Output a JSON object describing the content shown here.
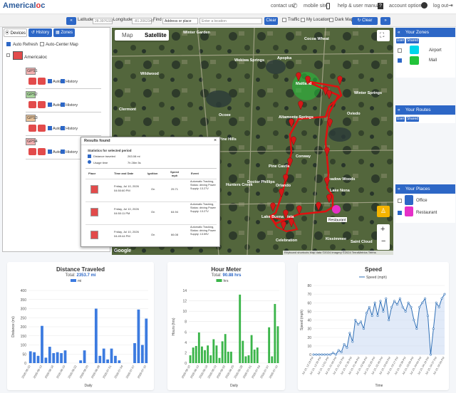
{
  "header": {
    "logo_text": "Americal",
    "logo_o": "o",
    "logo_tail": "c",
    "contact": "contact us",
    "mobile": "mobile site",
    "help": "help & user manuals",
    "account": "account options",
    "logout": "log out"
  },
  "toolbar": {
    "lat_label": "Latitude:",
    "lat_value": "28.3976337",
    "lng_label": "Longitude:",
    "lng_value": "-81.2062345",
    "find_label": "Find",
    "find_select": "Address or place",
    "find_placeholder": "Enter a location",
    "clear": "Clear",
    "traffic": "Traffic",
    "my_location": "My Location",
    "dark_map": "Dark Map",
    "clear_screen": "Clear Screen"
  },
  "left_panel": {
    "tabs": [
      "Devices",
      "History",
      "Zones"
    ],
    "auto_refresh": "Auto Refresh",
    "auto_center": "Auto-Center Map",
    "group": "Americaloc",
    "devices": [
      {
        "name": "GPS1",
        "color": "#f3b1b1"
      },
      {
        "name": "GPS2",
        "color": "#a7d49a"
      },
      {
        "name": "GPS3",
        "color": "#e8c39a"
      },
      {
        "name": "GPS4",
        "color": "#f3b1b1"
      }
    ],
    "auto_label": "Auto",
    "history_label": "History"
  },
  "map": {
    "map_tab": "Map",
    "satellite_tab": "Satellite",
    "places": [
      "Winter Garden",
      "Apopka",
      "Wekiwa Springs",
      "Altamonte Springs",
      "Oviedo",
      "Ocoee",
      "Orlando",
      "Winter Springs",
      "Pine Hills",
      "Doctor Phillips",
      "Windermere",
      "Kissimmee",
      "Lake Buena Vista",
      "Celebration",
      "Lake Nona",
      "Saint Cloud",
      "Maitland",
      "Conway",
      "Pine Castle",
      "Hunters Creek",
      "Meadow Woods",
      "Bay Lake",
      "Clermont",
      "Wildwood",
      "Cocoa Wheat"
    ],
    "zone_label": "Restaurant",
    "footer": "Keyboard shortcuts  Map data ©2024 Imagery ©2024 TerraMetrics  Terms",
    "google": "Google"
  },
  "right_panel": {
    "zones_title": "Your Zones",
    "user": "User",
    "shared": "Shared",
    "zones": [
      {
        "name": "Airport",
        "color": "#00d5ea",
        "checked": false
      },
      {
        "name": "Mall",
        "color": "#22c33a",
        "checked": true
      }
    ],
    "routes_title": "Your Routes",
    "places_title": "Your Places",
    "places": [
      {
        "name": "Office",
        "color": "#2d67c6",
        "checked": false
      },
      {
        "name": "Restaurant",
        "color": "#e530c8",
        "checked": true
      }
    ]
  },
  "modal": {
    "title": "Results found",
    "stats_title": "Statistics for selected period",
    "distance_label": "Distance traveled",
    "distance_value": "263.08 mi",
    "usage_label": "Usage time",
    "usage_value": "7h 28m 5s",
    "columns": [
      "Place",
      "Time and Date",
      "Ignition",
      "Speed mph",
      "Event"
    ],
    "rows": [
      {
        "time": "Friday, Jul 10, 2026 04:50:60 PM",
        "ignition": "On",
        "speed": "25.71",
        "event": "Automatic Tracking, Status: driving Power Supply: 13.27V"
      },
      {
        "time": "Friday, Jul 10, 2026 04:50:11 PM",
        "ignition": "On",
        "speed": "64.94",
        "event": "Automatic Tracking, Status: driving Power Supply: 13.27V"
      },
      {
        "time": "Friday, Jul 10, 2026 04:49:44 PM",
        "ignition": "On",
        "speed": "66.08",
        "event": "Automatic Tracking, Status: driving Power Supply: 13.59V"
      }
    ]
  },
  "chart_data": [
    {
      "type": "bar",
      "title": "Distance Traveled",
      "subtitle_prefix": "Total: ",
      "subtitle_value": "2353.7 mi",
      "legend": "mi",
      "xlabel": "Daily",
      "ylabel": "Distance (mi)",
      "ylim": [
        0,
        400
      ],
      "yticks": [
        0,
        50,
        100,
        150,
        200,
        250,
        300,
        350,
        400
      ],
      "color": "#3c7be0",
      "categories": [
        "2026-06-10",
        "2026-06-11",
        "2026-06-12",
        "2026-06-13",
        "2026-06-14",
        "2026-06-15",
        "2026-06-16",
        "2026-06-17",
        "2026-06-18",
        "2026-06-19",
        "2026-06-20",
        "2026-06-21",
        "2026-06-22",
        "2026-06-23",
        "2026-06-24",
        "2026-06-25",
        "2026-06-26",
        "2026-06-27",
        "2026-06-28",
        "2026-06-29",
        "2026-06-30",
        "2026-07-01",
        "2026-07-02",
        "2026-07-03",
        "2026-07-04",
        "2026-07-05",
        "2026-07-06",
        "2026-07-07",
        "2026-07-08",
        "2026-07-09",
        "2026-07-10"
      ],
      "tick_labels": [
        "2026-06-10",
        "2026-06-13",
        "2026-06-16",
        "2026-06-19",
        "2026-06-22",
        "2026-06-25",
        "2026-06-28",
        "2026-07-01",
        "2026-07-04",
        "2026-07-07",
        "2026-07-10"
      ],
      "values": [
        65,
        60,
        40,
        205,
        30,
        90,
        55,
        60,
        55,
        70,
        0,
        0,
        0,
        15,
        70,
        0,
        0,
        300,
        40,
        80,
        20,
        80,
        40,
        15,
        0,
        0,
        0,
        110,
        295,
        100,
        245
      ]
    },
    {
      "type": "bar",
      "title": "Hour Meter",
      "subtitle_prefix": "Total: ",
      "subtitle_value": "90.88 hrs",
      "legend": "hrs",
      "xlabel": "Daily",
      "ylabel": "Hours (hrs)",
      "ylim": [
        0,
        14
      ],
      "yticks": [
        0,
        2,
        4,
        6,
        8,
        10,
        12,
        14
      ],
      "color": "#3bb54a",
      "categories": [
        "2026-06-10",
        "2026-06-11",
        "2026-06-12",
        "2026-06-13",
        "2026-06-14",
        "2026-06-15",
        "2026-06-16",
        "2026-06-17",
        "2026-06-18",
        "2026-06-19",
        "2026-06-20",
        "2026-06-21",
        "2026-06-22",
        "2026-06-23",
        "2026-06-24",
        "2026-06-25",
        "2026-06-26",
        "2026-06-27",
        "2026-06-28",
        "2026-06-29",
        "2026-06-30",
        "2026-07-01",
        "2026-07-02",
        "2026-07-03",
        "2026-07-04",
        "2026-07-05",
        "2026-07-06",
        "2026-07-07",
        "2026-07-08",
        "2026-07-09",
        "2026-07-10"
      ],
      "tick_labels": [
        "2026-06-10",
        "2026-06-13",
        "2026-06-16",
        "2026-06-19",
        "2026-06-22",
        "2026-06-25",
        "2026-06-28",
        "2026-07-01",
        "2026-07-04",
        "2026-07-07",
        "2026-07-10"
      ],
      "values": [
        1.5,
        3.0,
        3.3,
        5.9,
        3.2,
        2.5,
        3.4,
        1.5,
        4.6,
        3.4,
        1.0,
        4.2,
        5.6,
        2.2,
        2.2,
        0,
        0,
        13.2,
        4.3,
        1.3,
        1.5,
        5.4,
        2.6,
        3.0,
        0,
        0,
        0,
        6.9,
        1.3,
        11.4,
        7.1
      ]
    },
    {
      "type": "line",
      "title": "Speed",
      "legend": "Speed (mph)",
      "xlabel": "Time",
      "ylabel": "Speed (mph)",
      "ylim": [
        0,
        80
      ],
      "yticks": [
        0,
        10,
        20,
        30,
        40,
        50,
        60,
        70,
        80
      ],
      "color": "#2f6fb6",
      "tick_labels": [
        "Jul 10, 12:18 PM",
        "Jul 10, 12:33 PM",
        "Jul 10, 12:51 PM",
        "Jul 10, 01:05 PM",
        "Jul 10, 01:22 PM",
        "Jul 10, 01:35 PM",
        "Jul 10, 01:49 PM",
        "Jul 10, 02:09 PM",
        "Jul 10, 02:25 PM",
        "Jul 10, 02:45 PM",
        "Jul 10, 03:03 PM",
        "Jul 10, 03:17 PM",
        "Jul 10, 03:38 PM",
        "Jul 10, 03:50 PM",
        "Jul 10, 04:04 PM",
        "Jul 10, 04:19 PM",
        "Jul 10, 04:37 PM",
        "Jul 10, 04:50 PM"
      ],
      "values": [
        0,
        0,
        0,
        0,
        0,
        0,
        0,
        2,
        0,
        5,
        3,
        12,
        8,
        25,
        15,
        40,
        35,
        38,
        30,
        48,
        55,
        45,
        60,
        45,
        62,
        50,
        65,
        40,
        55,
        62,
        58,
        65,
        55,
        50,
        60,
        55,
        40,
        30,
        55,
        60,
        65,
        45,
        0,
        30,
        60,
        55,
        65,
        70
      ]
    }
  ]
}
